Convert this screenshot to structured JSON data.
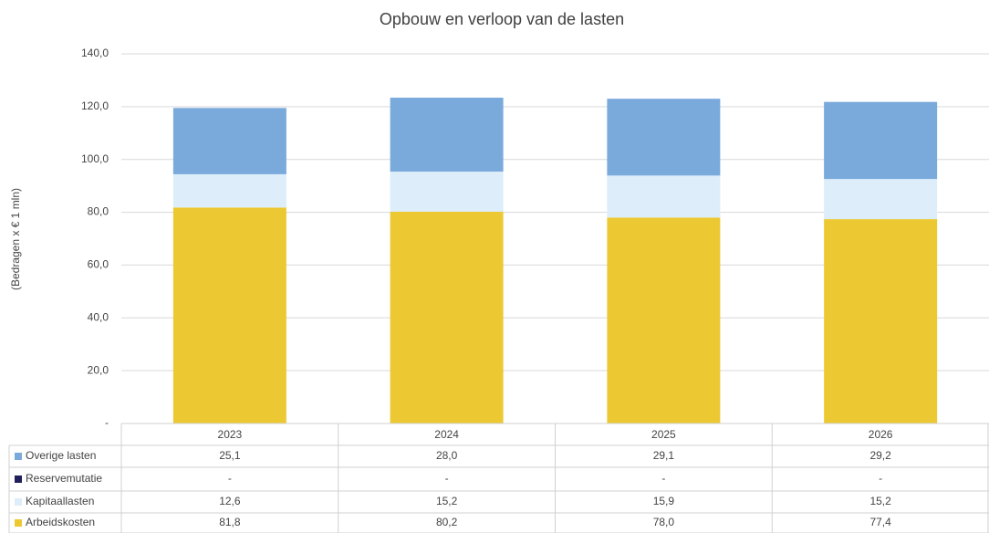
{
  "chart_data": {
    "type": "stacked_bar",
    "title": "Opbouw en verloop van de lasten",
    "y_label": "(Bedragen x € 1 mln)",
    "categories": [
      "2023",
      "2024",
      "2025",
      "2026"
    ],
    "series": [
      {
        "name": "Overige lasten",
        "color": "#7aaadc",
        "values": [
          25.1,
          28.0,
          29.1,
          29.2
        ],
        "value_labels": [
          "25,1",
          "28,0",
          "29,1",
          "29,2"
        ]
      },
      {
        "name": "Reservemutatie",
        "color": "#1f1f5c",
        "values": [
          0,
          0,
          0,
          0
        ],
        "value_labels": [
          "-",
          "-",
          "-",
          "-"
        ]
      },
      {
        "name": "Kapitaallasten",
        "color": "#ddeefa",
        "values": [
          12.6,
          15.2,
          15.9,
          15.2
        ],
        "value_labels": [
          "12,6",
          "15,2",
          "15,9",
          "15,2"
        ]
      },
      {
        "name": "Arbeidskosten",
        "color": "#ecc932",
        "values": [
          81.8,
          80.2,
          78.0,
          77.4
        ],
        "value_labels": [
          "81,8",
          "80,2",
          "78,0",
          "77,4"
        ]
      }
    ],
    "ylim": [
      0,
      140
    ],
    "yticks": [
      {
        "value": 0,
        "label": "-"
      },
      {
        "value": 20,
        "label": "20,0"
      },
      {
        "value": 40,
        "label": "40,0"
      },
      {
        "value": 60,
        "label": "60,0"
      },
      {
        "value": 80,
        "label": "80,0"
      },
      {
        "value": 100,
        "label": "100,0"
      },
      {
        "value": 120,
        "label": "120,0"
      },
      {
        "value": 140,
        "label": "140,0"
      }
    ],
    "grid": true
  }
}
